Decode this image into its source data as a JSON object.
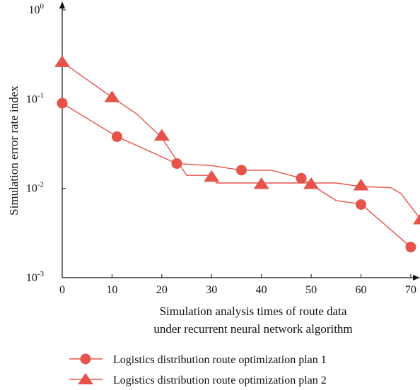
{
  "chart_data": {
    "type": "line",
    "xlabel": [
      "Simulation analysis times of route data",
      "under recurrent neural network algorithm"
    ],
    "ylabel": "Simulation error rate index",
    "xlim": [
      0,
      72
    ],
    "xticks": [
      0,
      10,
      20,
      30,
      40,
      50,
      60,
      70
    ],
    "y_scale": "log",
    "ylim": [
      0.001,
      1
    ],
    "yticks": [
      {
        "value": 1,
        "base": "10",
        "exp": "0"
      },
      {
        "value": 0.1,
        "base": "10",
        "exp": "-1"
      },
      {
        "value": 0.01,
        "base": "10",
        "exp": "-2"
      },
      {
        "value": 0.001,
        "base": "10",
        "exp": "-3"
      }
    ],
    "legend_position": "bottom",
    "series": [
      {
        "name": "Logistics distribution route optimization plan 1",
        "marker": "circle",
        "color": "#e5534b",
        "line_x": [
          0,
          11,
          23,
          30,
          36,
          42,
          48,
          55,
          60,
          70
        ],
        "line_y": [
          0.09,
          0.038,
          0.019,
          0.018,
          0.016,
          0.016,
          0.013,
          0.0073,
          0.0067,
          0.0022
        ],
        "x": [
          0,
          11,
          23,
          36,
          48,
          60,
          70
        ],
        "y": [
          0.09,
          0.038,
          0.019,
          0.016,
          0.013,
          0.0066,
          0.0022
        ]
      },
      {
        "name": "Logistics distribution route optimization plan 2",
        "marker": "triangle",
        "color": "#e5534b",
        "line_x": [
          0,
          10,
          15,
          20,
          25,
          30,
          31,
          40,
          50,
          55,
          60,
          66,
          68,
          72
        ],
        "line_y": [
          0.26,
          0.105,
          0.068,
          0.037,
          0.014,
          0.014,
          0.0115,
          0.0115,
          0.0115,
          0.0115,
          0.0105,
          0.0102,
          0.0088,
          0.0045
        ],
        "x": [
          0,
          10,
          20,
          30,
          40,
          50,
          60,
          72
        ],
        "y": [
          0.26,
          0.105,
          0.039,
          0.0135,
          0.0112,
          0.0112,
          0.0108,
          0.0045
        ]
      }
    ]
  }
}
